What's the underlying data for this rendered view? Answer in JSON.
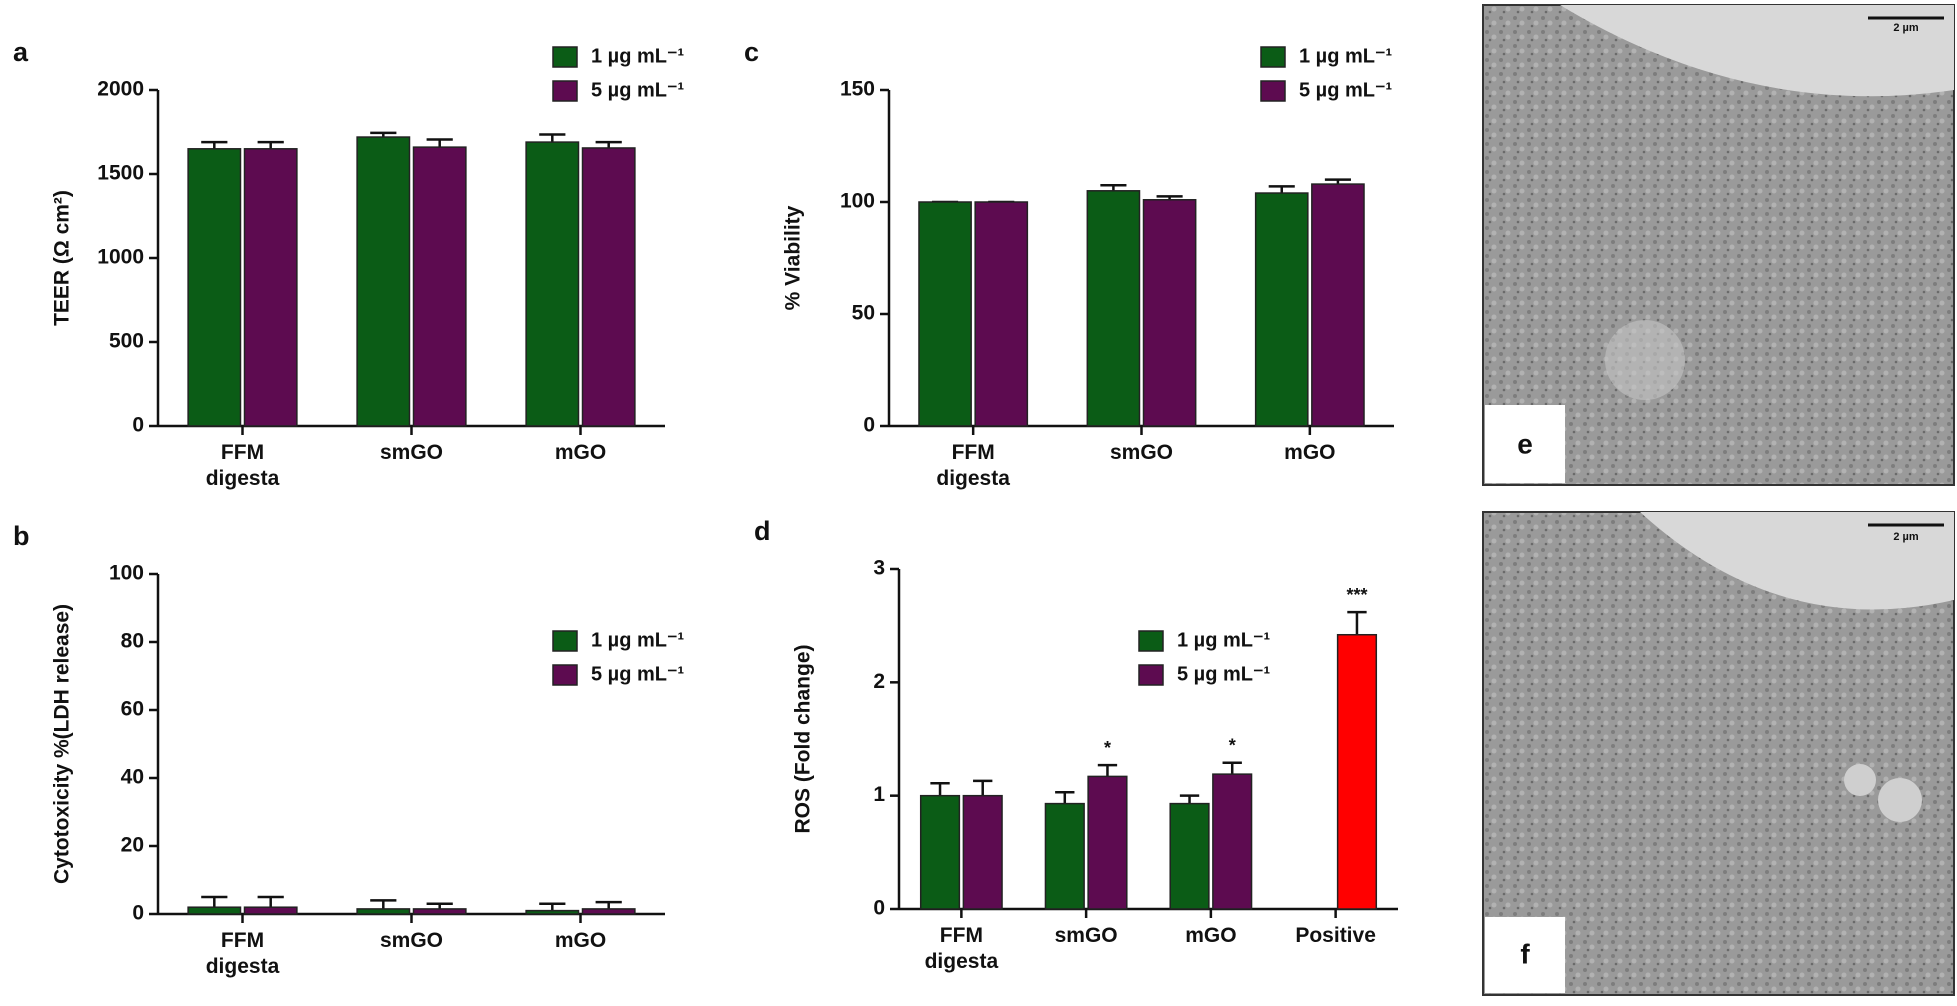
{
  "chart_data": [
    {
      "type": "bar",
      "panel": "a",
      "y_label": "TEER (Ω cm²)",
      "categories": [
        "FFM digesta",
        "smGO",
        "mGO"
      ],
      "series": [
        {
          "name": "1 µg mL⁻¹",
          "color": "#0b5c16",
          "values": [
            1650,
            1720,
            1690
          ],
          "errors": [
            40,
            25,
            45
          ]
        },
        {
          "name": "5 µg mL⁻¹",
          "color": "#5d0b50",
          "values": [
            1650,
            1660,
            1655
          ],
          "errors": [
            40,
            45,
            35
          ]
        }
      ],
      "ylim": [
        0,
        2000
      ],
      "yticks": [
        0,
        500,
        1000,
        1500,
        2000
      ]
    },
    {
      "type": "bar",
      "panel": "b",
      "y_label": "Cytotoxicity %(LDH release)",
      "categories": [
        "FFM digesta",
        "smGO",
        "mGO"
      ],
      "series": [
        {
          "name": "1 µg mL⁻¹",
          "color": "#0b5c16",
          "values": [
            2,
            1.5,
            1
          ],
          "errors": [
            3,
            2.5,
            2
          ]
        },
        {
          "name": "5 µg mL⁻¹",
          "color": "#5d0b50",
          "values": [
            2,
            1.5,
            1.5
          ],
          "errors": [
            3,
            1.5,
            2
          ]
        }
      ],
      "ylim": [
        0,
        100
      ],
      "yticks": [
        0,
        20,
        40,
        60,
        80,
        100
      ]
    },
    {
      "type": "bar",
      "panel": "c",
      "y_label": "% Viability",
      "categories": [
        "FFM digesta",
        "smGO",
        "mGO"
      ],
      "series": [
        {
          "name": "1 µg mL⁻¹",
          "color": "#0b5c16",
          "values": [
            100,
            105,
            104
          ],
          "errors": [
            0,
            2.5,
            3
          ]
        },
        {
          "name": "5 µg mL⁻¹",
          "color": "#5d0b50",
          "values": [
            100,
            101,
            108
          ],
          "errors": [
            0,
            1.5,
            2
          ]
        }
      ],
      "ylim": [
        0,
        150
      ],
      "yticks": [
        0,
        50,
        100,
        150
      ]
    },
    {
      "type": "bar",
      "panel": "d",
      "y_label": "ROS (Fold change)",
      "categories": [
        "FFM digesta",
        "smGO",
        "mGO",
        "Positive"
      ],
      "series": [
        {
          "name": "1 µg mL⁻¹",
          "color": "#0b5c16",
          "values": [
            1.0,
            0.93,
            0.93,
            null
          ],
          "errors": [
            0.11,
            0.1,
            0.07,
            null
          ]
        },
        {
          "name": "5 µg mL⁻¹",
          "color": "#5d0b50",
          "colors": [
            "#5d0b50",
            "#5d0b50",
            "#5d0b50",
            "#ff0000"
          ],
          "values": [
            1.0,
            1.17,
            1.19,
            2.42
          ],
          "errors": [
            0.13,
            0.1,
            0.1,
            0.2
          ],
          "significance": [
            null,
            "*",
            "*",
            "***"
          ]
        }
      ],
      "ylim": [
        0,
        3
      ],
      "yticks": [
        0,
        1,
        2,
        3
      ]
    }
  ],
  "micrographs": [
    {
      "label": "e",
      "scale_bar": "2 µm"
    },
    {
      "label": "f",
      "scale_bar": "2 µm"
    }
  ]
}
